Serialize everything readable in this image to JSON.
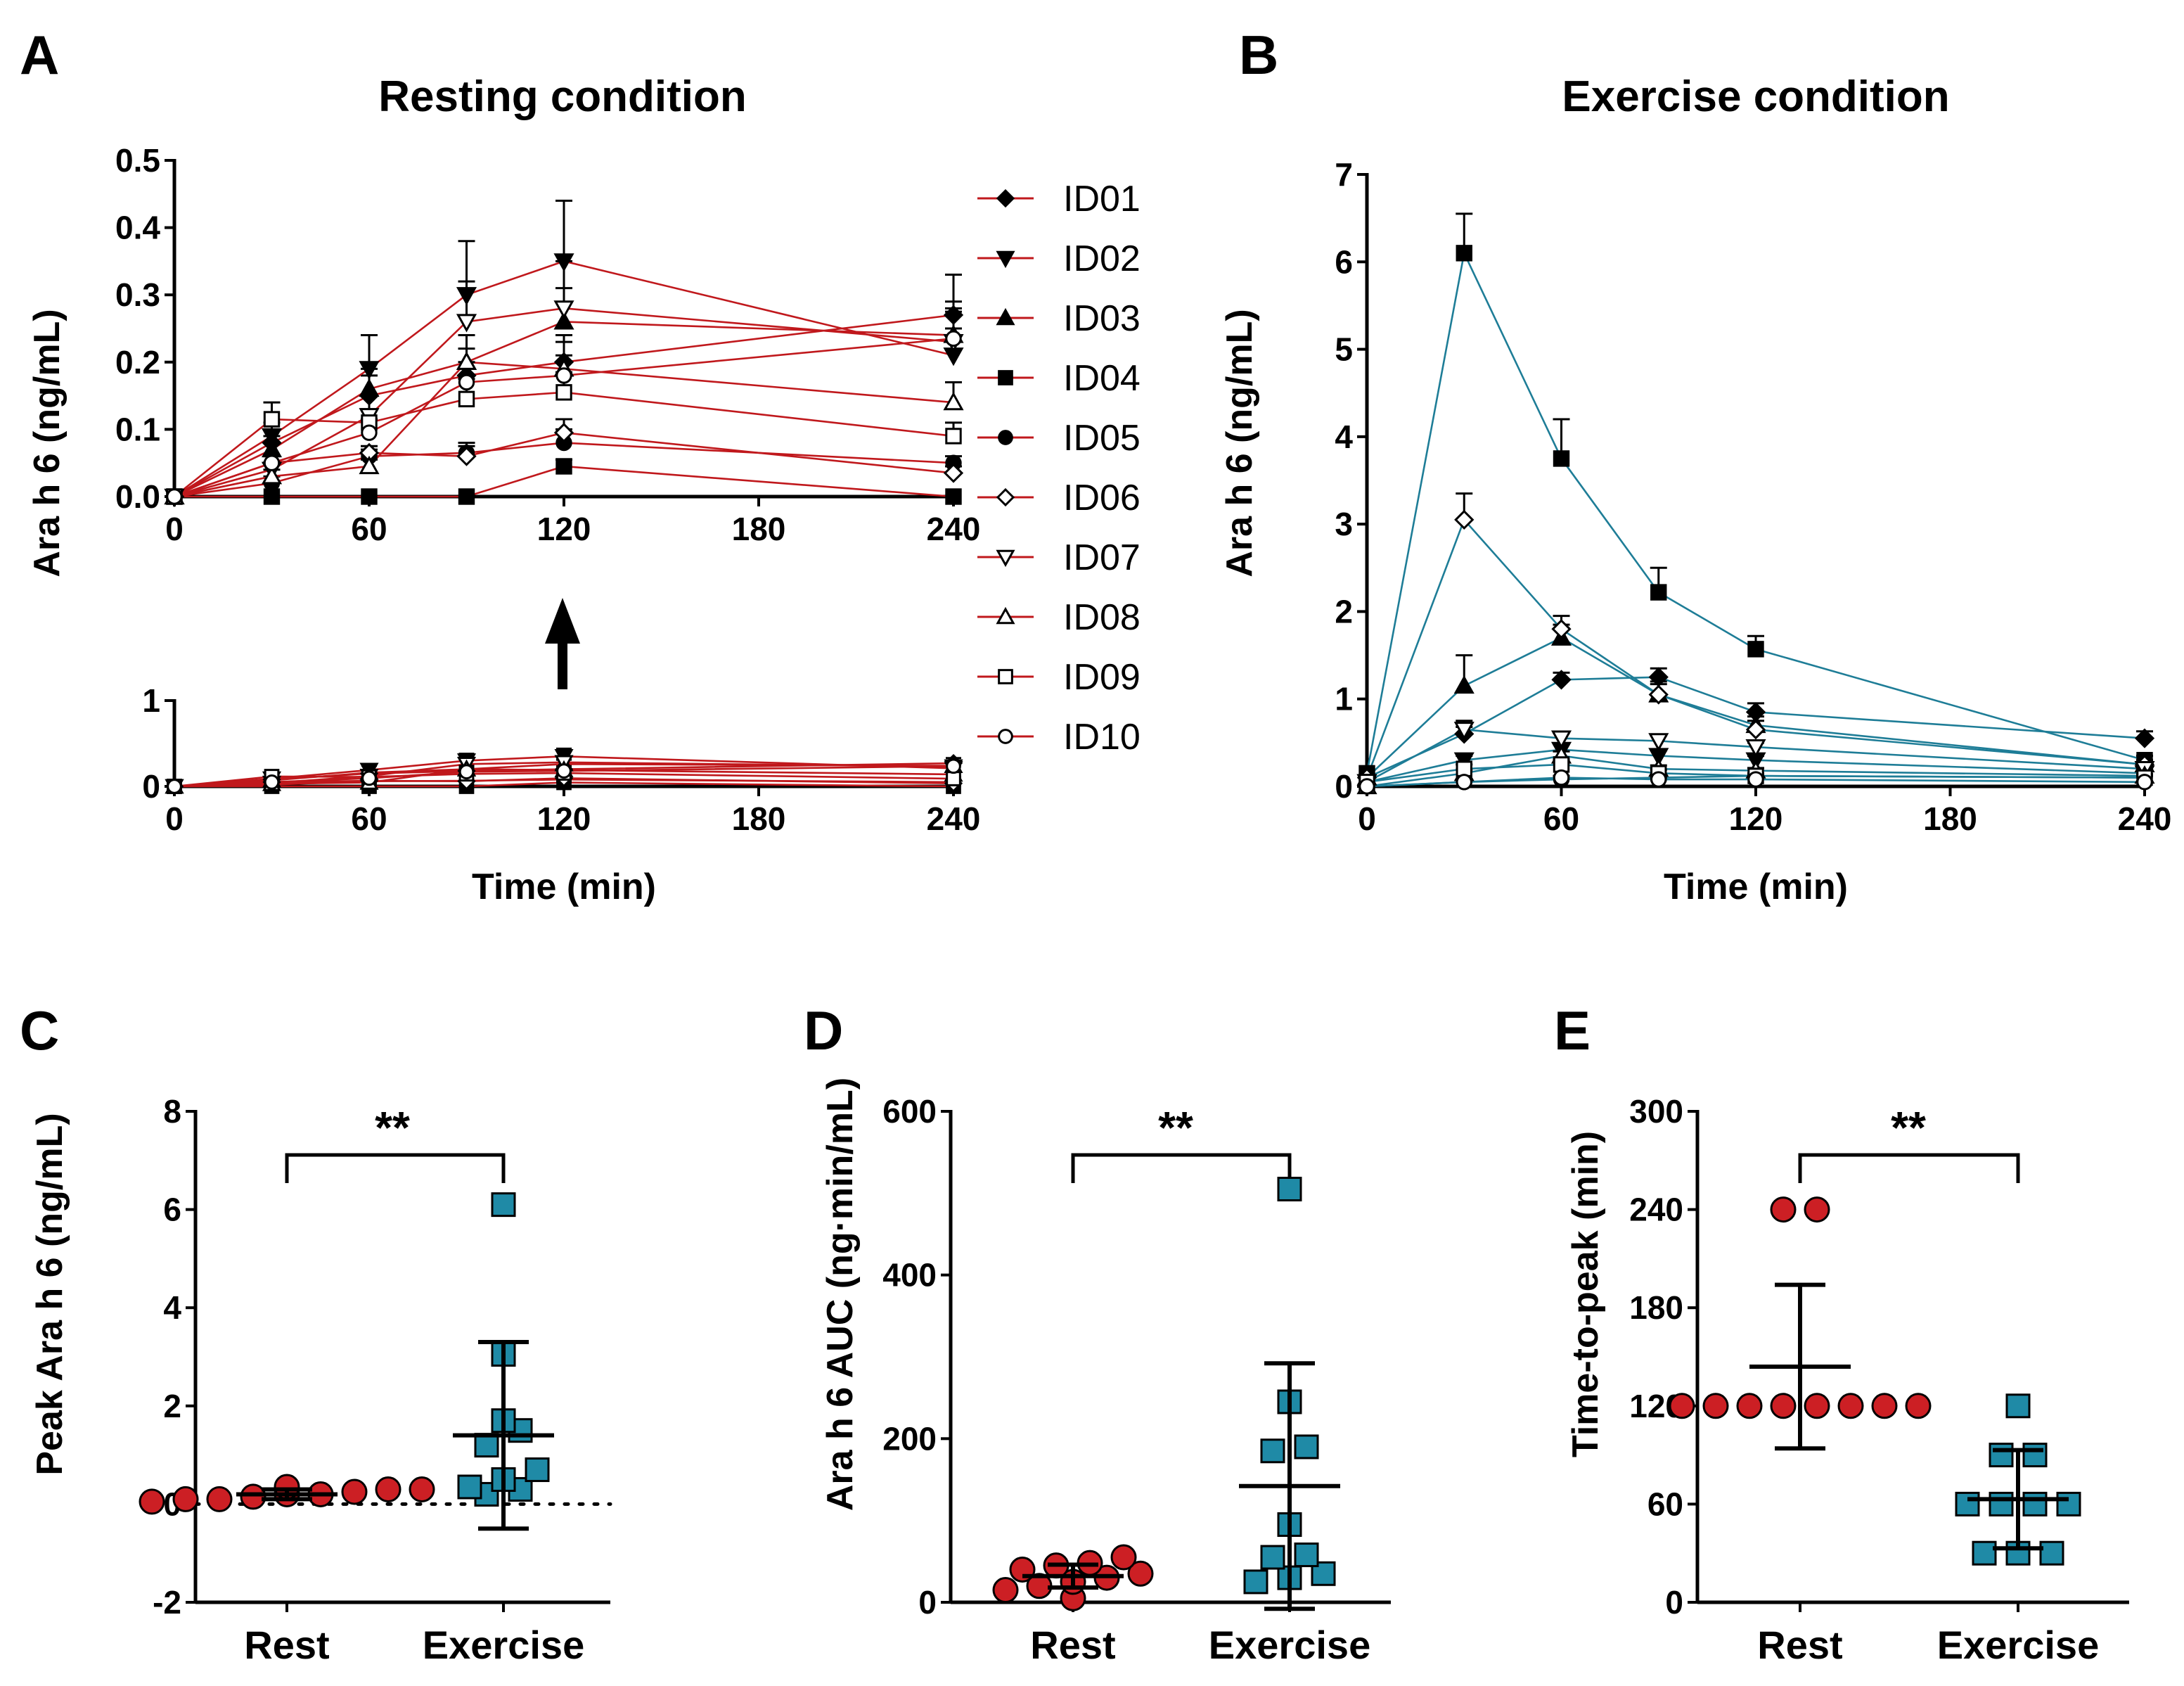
{
  "chart_data": [
    {
      "panel": "A",
      "type": "line",
      "title": "Resting condition",
      "xlabel": "Time (min)",
      "ylabel": "Ara h 6 (ng/mL)",
      "x": [
        0,
        30,
        60,
        90,
        120,
        240
      ],
      "xticks": [
        "0",
        "60",
        "120",
        "180",
        "240"
      ],
      "top_ylim": [
        0,
        0.5
      ],
      "top_yticks": [
        "0.0",
        "0.1",
        "0.2",
        "0.3",
        "0.4",
        "0.5"
      ],
      "bottom_ylim": [
        0,
        1
      ],
      "bottom_yticks": [
        "0",
        "1"
      ],
      "series": [
        {
          "name": "ID01",
          "marker": "diamond-filled",
          "values": [
            0,
            0.08,
            0.15,
            0.18,
            0.2,
            0.27
          ],
          "err": [
            0,
            0.02,
            0.03,
            0.04,
            0.04,
            0.06
          ]
        },
        {
          "name": "ID02",
          "marker": "tri-down-filled",
          "values": [
            0,
            0.09,
            0.19,
            0.3,
            0.35,
            0.21
          ],
          "err": [
            0,
            0.02,
            0.05,
            0.08,
            0.09,
            0.04
          ]
        },
        {
          "name": "ID03",
          "marker": "tri-up-filled",
          "values": [
            0,
            0.07,
            0.16,
            0.2,
            0.26,
            0.24
          ],
          "err": [
            0,
            0.02,
            0.03,
            0.04,
            0.05,
            0.05
          ]
        },
        {
          "name": "ID04",
          "marker": "square-filled",
          "values": [
            0,
            0,
            0,
            0,
            0.045,
            0
          ],
          "err": [
            0,
            0,
            0,
            0,
            0.01,
            0
          ]
        },
        {
          "name": "ID05",
          "marker": "circle-filled",
          "values": [
            0,
            0.02,
            0.06,
            0.065,
            0.08,
            0.05
          ],
          "err": [
            0,
            0.01,
            0.01,
            0.015,
            0.02,
            0.01
          ]
        },
        {
          "name": "ID06",
          "marker": "diamond-open",
          "values": [
            0,
            0.05,
            0.065,
            0.06,
            0.095,
            0.035
          ],
          "err": [
            0,
            0.01,
            0.01,
            0.015,
            0.02,
            0.01
          ]
        },
        {
          "name": "ID07",
          "marker": "tri-down-open",
          "values": [
            0,
            0.04,
            0.12,
            0.26,
            0.28,
            0.23
          ],
          "err": [
            0,
            0.01,
            0.03,
            0.06,
            0.07,
            0.05
          ]
        },
        {
          "name": "ID08",
          "marker": "tri-up-open",
          "values": [
            0,
            0.03,
            0.045,
            0.2,
            0.19,
            0.14
          ],
          "err": [
            0,
            0.01,
            0.01,
            0.04,
            0.04,
            0.03
          ]
        },
        {
          "name": "ID09",
          "marker": "square-open",
          "values": [
            0,
            0.115,
            0.11,
            0.145,
            0.155,
            0.09
          ],
          "err": [
            0,
            0.025,
            0.02,
            0.03,
            0.03,
            0.02
          ]
        },
        {
          "name": "ID10",
          "marker": "circle-open",
          "values": [
            0,
            0.05,
            0.095,
            0.17,
            0.18,
            0.235
          ],
          "err": [
            0,
            0.01,
            0.02,
            0.03,
            0.03,
            0.04
          ]
        }
      ]
    },
    {
      "panel": "B",
      "type": "line",
      "title": "Exercise condition",
      "xlabel": "Time (min)",
      "ylabel": "Ara h 6 (ng/mL)",
      "x": [
        0,
        30,
        60,
        90,
        120,
        240
      ],
      "xticks": [
        "0",
        "60",
        "120",
        "180",
        "240"
      ],
      "ylim": [
        0,
        7
      ],
      "yticks": [
        "0",
        "1",
        "2",
        "3",
        "4",
        "5",
        "6",
        "7"
      ],
      "series": [
        {
          "name": "ID01",
          "marker": "diamond-filled",
          "values": [
            0.1,
            0.6,
            1.22,
            1.25,
            0.85,
            0.55
          ],
          "err": [
            0,
            0.08,
            0.08,
            0.1,
            0.1,
            0.08
          ]
        },
        {
          "name": "ID02",
          "marker": "tri-down-filled",
          "values": [
            0.05,
            0.3,
            0.42,
            0.35,
            0.3,
            0.15
          ],
          "err": [
            0,
            0.05,
            0.06,
            0.06,
            0.05,
            0.03
          ]
        },
        {
          "name": "ID03",
          "marker": "tri-up-filled",
          "values": [
            0.1,
            1.15,
            1.7,
            1.05,
            0.7,
            0.25
          ],
          "err": [
            0,
            0.35,
            0.15,
            0.15,
            0.1,
            0.05
          ]
        },
        {
          "name": "ID04",
          "marker": "square-filled",
          "values": [
            0.15,
            6.1,
            3.75,
            2.22,
            1.57,
            0.3
          ],
          "err": [
            0,
            0.45,
            0.45,
            0.28,
            0.15,
            0.05
          ]
        },
        {
          "name": "ID05",
          "marker": "circle-filled",
          "values": [
            0,
            0.05,
            0.08,
            0.1,
            0.12,
            0.1
          ],
          "err": [
            0,
            0.02,
            0.02,
            0.02,
            0.02,
            0.02
          ]
        },
        {
          "name": "ID06",
          "marker": "diamond-open",
          "values": [
            0.1,
            3.05,
            1.8,
            1.05,
            0.65,
            0.25
          ],
          "err": [
            0,
            0.3,
            0.15,
            0.12,
            0.1,
            0.05
          ]
        },
        {
          "name": "ID07",
          "marker": "tri-down-open",
          "values": [
            0.05,
            0.65,
            0.55,
            0.52,
            0.45,
            0.2
          ],
          "err": [
            0,
            0.1,
            0.06,
            0.06,
            0.05,
            0.03
          ]
        },
        {
          "name": "ID08",
          "marker": "tri-up-open",
          "values": [
            0,
            0.15,
            0.35,
            0.2,
            0.18,
            0.12
          ],
          "err": [
            0,
            0.04,
            0.05,
            0.04,
            0.03,
            0.02
          ]
        },
        {
          "name": "ID09",
          "marker": "square-open",
          "values": [
            0.05,
            0.2,
            0.25,
            0.15,
            0.12,
            0.1
          ],
          "err": [
            0,
            0.05,
            0.06,
            0.04,
            0.03,
            0.02
          ]
        },
        {
          "name": "ID10",
          "marker": "circle-open",
          "values": [
            0,
            0.05,
            0.1,
            0.08,
            0.08,
            0.05
          ],
          "err": [
            0,
            0.02,
            0.02,
            0.02,
            0.02,
            0.01
          ]
        }
      ]
    },
    {
      "panel": "C",
      "type": "scatter",
      "ylabel": "Peak Ara h 6 (ng/mL)",
      "categories": [
        "Rest",
        "Exercise"
      ],
      "ylim": [
        -2,
        8
      ],
      "yticks": [
        "-2",
        "0",
        "2",
        "4",
        "6",
        "8"
      ],
      "reference_line_y": 0,
      "significance": "**",
      "groups": [
        {
          "name": "Rest",
          "values": [
            0.05,
            0.1,
            0.1,
            0.15,
            0.2,
            0.2,
            0.25,
            0.3,
            0.3,
            0.35
          ],
          "mean": 0.2,
          "sd_low": 0.1,
          "sd_high": 0.3
        },
        {
          "name": "Exercise",
          "values": [
            0.2,
            0.3,
            0.35,
            0.5,
            0.7,
            1.2,
            1.5,
            1.7,
            3.05,
            6.1
          ],
          "mean": 1.4,
          "sd_low": -0.5,
          "sd_high": 3.3
        }
      ]
    },
    {
      "panel": "D",
      "type": "scatter",
      "ylabel": "Ara h 6 AUC (ng·min/mL)",
      "categories": [
        "Rest",
        "Exercise"
      ],
      "ylim": [
        0,
        600
      ],
      "yticks": [
        "0",
        "200",
        "400",
        "600"
      ],
      "significance": "**",
      "groups": [
        {
          "name": "Rest",
          "values": [
            5,
            15,
            20,
            25,
            30,
            35,
            40,
            45,
            48,
            55
          ],
          "mean": 32,
          "sd_low": 18,
          "sd_high": 46
        },
        {
          "name": "Exercise",
          "values": [
            25,
            30,
            35,
            55,
            58,
            95,
            185,
            190,
            245,
            505
          ],
          "mean": 142,
          "sd_low": -8,
          "sd_high": 292
        }
      ]
    },
    {
      "panel": "E",
      "type": "scatter",
      "ylabel": "Time-to-peak (min)",
      "categories": [
        "Rest",
        "Exercise"
      ],
      "ylim": [
        0,
        300
      ],
      "yticks": [
        "0",
        "60",
        "120",
        "180",
        "240",
        "300"
      ],
      "significance": "**",
      "groups": [
        {
          "name": "Rest",
          "values": [
            120,
            120,
            120,
            120,
            120,
            120,
            120,
            120,
            240,
            240
          ],
          "mean": 144,
          "sd_low": 94,
          "sd_high": 194
        },
        {
          "name": "Exercise",
          "values": [
            30,
            30,
            30,
            60,
            60,
            60,
            60,
            90,
            90,
            120
          ],
          "mean": 63,
          "sd_low": 33,
          "sd_high": 93
        }
      ]
    }
  ],
  "labels": {
    "panels": [
      "A",
      "B",
      "C",
      "D",
      "E"
    ],
    "titleA": "Resting condition",
    "titleB": "Exercise condition",
    "xlabelA": "Time (min)",
    "xlabelB": "Time (min)",
    "ylabelA": "Ara h 6 (ng/mL)",
    "ylabelB": "Ara h 6 (ng/mL)",
    "ylabelC": "Peak Ara h 6 (ng/mL)",
    "ylabelD": "Ara h 6 AUC (ng·min/mL)",
    "ylabelE": "Time-to-peak (min)",
    "sigC": "**",
    "sigD": "**",
    "sigE": "**"
  },
  "colors": {
    "rest": "#c0181c",
    "exercise": "#1e7d97",
    "rest_point": "#cc1f24",
    "exercise_point": "#1f8aa6",
    "ink": "#000000"
  }
}
